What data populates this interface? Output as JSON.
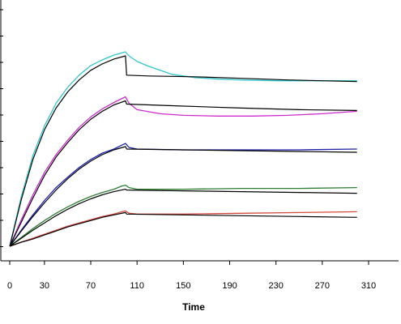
{
  "chart_data": {
    "type": "line",
    "title": "",
    "xlabel": "Time",
    "ylabel": "",
    "xlim": [
      0,
      340
    ],
    "ylim": [
      0,
      300
    ],
    "x_ticks": [
      0,
      30,
      70,
      110,
      150,
      190,
      230,
      270,
      310
    ],
    "grid": false,
    "legend": "none",
    "series": [
      {
        "color": "#33c6cc",
        "type": "measured",
        "x": [
          0,
          10,
          20,
          30,
          40,
          50,
          60,
          70,
          80,
          90,
          95,
          100,
          103,
          110,
          120,
          140,
          160,
          180,
          200,
          230,
          260,
          300
        ],
        "y": [
          0,
          62,
          113,
          150,
          178,
          198,
          213,
          225,
          232,
          238,
          240,
          242,
          237,
          230,
          224,
          214,
          210,
          208,
          207,
          206,
          206,
          206
        ]
      },
      {
        "color": "#000000",
        "type": "fit",
        "x": [
          0,
          10,
          20,
          30,
          40,
          50,
          60,
          70,
          80,
          90,
          100,
          101,
          120,
          160,
          200,
          240,
          300
        ],
        "y": [
          0,
          58,
          108,
          145,
          172,
          192,
          207,
          219,
          227,
          233,
          237,
          213,
          212,
          211,
          209,
          207,
          205
        ]
      },
      {
        "color": "#cc2ccc",
        "type": "measured",
        "x": [
          0,
          10,
          20,
          30,
          40,
          50,
          60,
          70,
          80,
          90,
          97,
          100,
          103,
          110,
          130,
          150,
          180,
          210,
          240,
          270,
          300
        ],
        "y": [
          0,
          33,
          64,
          92,
          114,
          132,
          148,
          161,
          171,
          179,
          184,
          186,
          178,
          170,
          165,
          163,
          162,
          162,
          163,
          165,
          168
        ]
      },
      {
        "color": "#000000",
        "type": "fit",
        "x": [
          0,
          10,
          20,
          30,
          40,
          50,
          60,
          70,
          80,
          90,
          100,
          101,
          140,
          200,
          250,
          300
        ],
        "y": [
          0,
          30,
          60,
          88,
          111,
          129,
          145,
          158,
          168,
          176,
          181,
          177,
          175,
          172,
          170,
          169
        ]
      },
      {
        "color": "#1f22aa",
        "type": "measured",
        "x": [
          0,
          10,
          20,
          30,
          40,
          50,
          60,
          70,
          80,
          90,
          97,
          100,
          103,
          110,
          150,
          200,
          250,
          300
        ],
        "y": [
          0,
          20,
          39,
          57,
          73,
          86,
          98,
          108,
          116,
          121,
          126,
          128,
          123,
          121,
          120,
          120,
          120,
          121
        ]
      },
      {
        "color": "#000000",
        "type": "fit",
        "x": [
          0,
          10,
          20,
          30,
          40,
          50,
          60,
          70,
          80,
          90,
          100,
          101,
          150,
          200,
          250,
          300
        ],
        "y": [
          0,
          19,
          37,
          54,
          70,
          84,
          96,
          106,
          114,
          120,
          124,
          121,
          120,
          119,
          118,
          117
        ]
      },
      {
        "color": "#2e7d32",
        "type": "measured",
        "x": [
          0,
          10,
          20,
          30,
          40,
          50,
          60,
          70,
          80,
          90,
          97,
          100,
          103,
          110,
          150,
          200,
          250,
          300
        ],
        "y": [
          0,
          11,
          22,
          32,
          41,
          49,
          56,
          62,
          67,
          71,
          75,
          76,
          73,
          71,
          71,
          72,
          72,
          73
        ]
      },
      {
        "color": "#000000",
        "type": "fit",
        "x": [
          0,
          10,
          20,
          30,
          40,
          50,
          60,
          70,
          80,
          90,
          100,
          101,
          150,
          200,
          250,
          300
        ],
        "y": [
          0,
          10,
          20,
          29,
          38,
          46,
          53,
          59,
          64,
          68,
          71,
          70,
          69,
          68,
          67,
          66
        ]
      },
      {
        "color": "#d24a3c",
        "type": "measured",
        "x": [
          0,
          10,
          20,
          30,
          40,
          50,
          60,
          70,
          80,
          90,
          97,
          100,
          103,
          110,
          150,
          200,
          250,
          300
        ],
        "y": [
          0,
          5,
          10,
          15,
          20,
          25,
          29,
          33,
          37,
          40,
          43,
          44,
          41,
          40,
          40,
          41,
          42,
          43
        ]
      },
      {
        "color": "#000000",
        "type": "fit",
        "x": [
          0,
          10,
          20,
          30,
          40,
          50,
          60,
          70,
          80,
          90,
          100,
          101,
          150,
          200,
          250,
          300
        ],
        "y": [
          0,
          5,
          9,
          14,
          19,
          24,
          28,
          32,
          36,
          39,
          42,
          40,
          39,
          38,
          37,
          36
        ]
      }
    ]
  }
}
